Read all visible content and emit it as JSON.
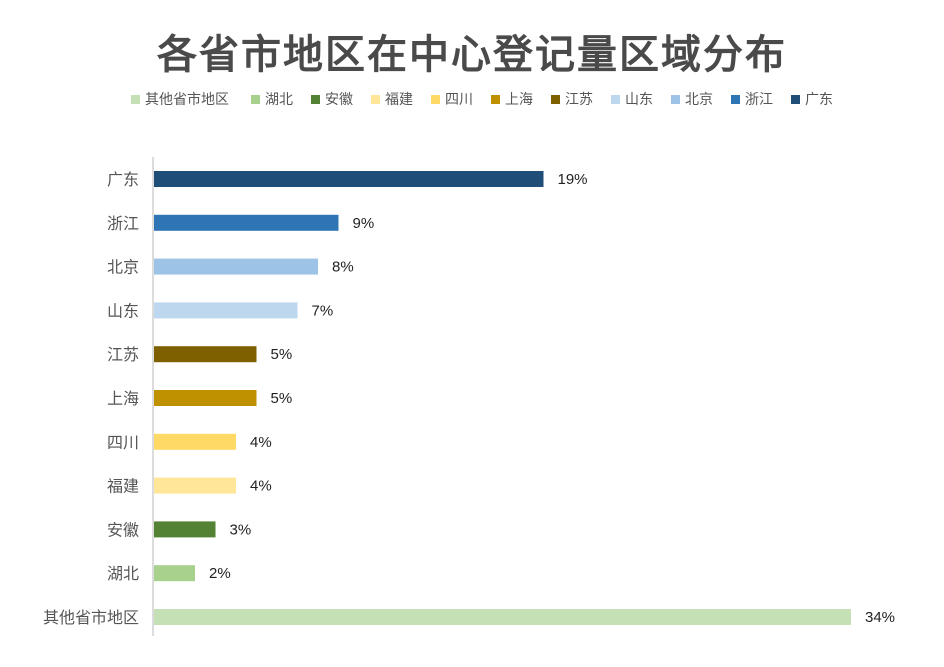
{
  "chart_data": {
    "type": "bar",
    "orientation": "horizontal",
    "title": "各省市地区在中心登记量区域分布",
    "categories": [
      "广东",
      "浙江",
      "北京",
      "山东",
      "江苏",
      "上海",
      "四川",
      "福建",
      "安徽",
      "湖北",
      "其他省市地区"
    ],
    "values": [
      19,
      9,
      8,
      7,
      5,
      5,
      4,
      4,
      3,
      2,
      34
    ],
    "value_labels": [
      "19%",
      "9%",
      "8%",
      "7%",
      "5%",
      "5%",
      "4%",
      "4%",
      "3%",
      "2%",
      "34%"
    ],
    "colors": [
      "#1f4e79",
      "#2e75b6",
      "#9dc3e6",
      "#bdd7ee",
      "#7f6000",
      "#bf9000",
      "#ffd966",
      "#ffe699",
      "#548235",
      "#a9d18e",
      "#c5e0b4"
    ],
    "legend_order": [
      "其他省市地区",
      "湖北",
      "安徽",
      "福建",
      "四川",
      "上海",
      "江苏",
      "山东",
      "北京",
      "浙江",
      "广东"
    ],
    "legend_position": "top",
    "unit": "%",
    "grid": false
  }
}
